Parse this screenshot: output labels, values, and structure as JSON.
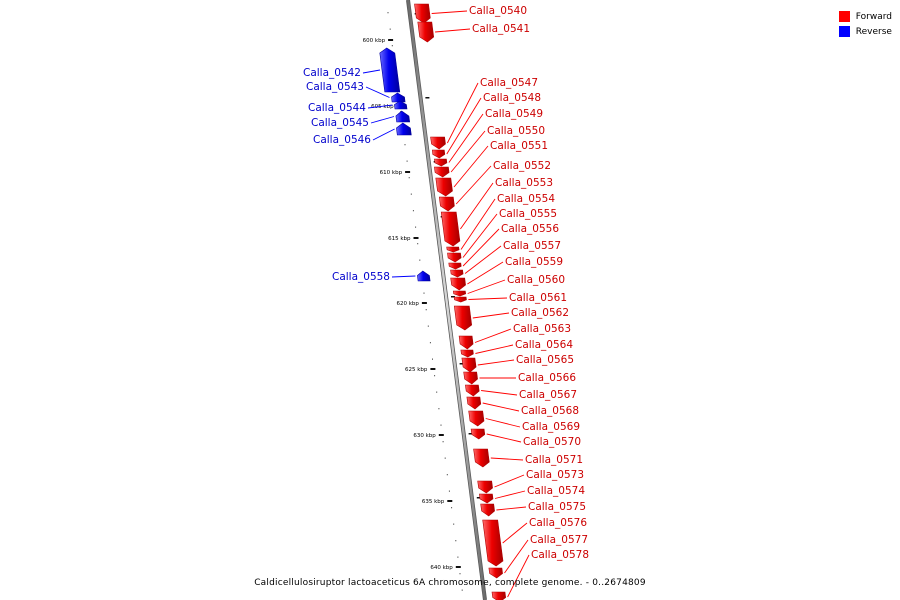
{
  "legend": {
    "forward_label": "Forward",
    "reverse_label": "Reverse",
    "forward_color": "#ff0000",
    "reverse_color": "#0000ff"
  },
  "caption": "Caldicellulosiruptor lactoaceticus 6A chromosome, complete genome. - 0..2674809",
  "ticks": [
    "600 kbp",
    "605 kbp",
    "610 kbp",
    "615 kbp",
    "620 kbp",
    "625 kbp",
    "630 kbp",
    "635 kbp",
    "640 kbp"
  ],
  "genes": [
    {
      "name": "Calla_0540",
      "strand": "forward"
    },
    {
      "name": "Calla_0541",
      "strand": "forward"
    },
    {
      "name": "Calla_0542",
      "strand": "reverse"
    },
    {
      "name": "Calla_0543",
      "strand": "reverse"
    },
    {
      "name": "Calla_0544",
      "strand": "reverse"
    },
    {
      "name": "Calla_0545",
      "strand": "reverse"
    },
    {
      "name": "Calla_0546",
      "strand": "reverse"
    },
    {
      "name": "Calla_0547",
      "strand": "forward"
    },
    {
      "name": "Calla_0548",
      "strand": "forward"
    },
    {
      "name": "Calla_0549",
      "strand": "forward"
    },
    {
      "name": "Calla_0550",
      "strand": "forward"
    },
    {
      "name": "Calla_0551",
      "strand": "forward"
    },
    {
      "name": "Calla_0552",
      "strand": "forward"
    },
    {
      "name": "Calla_0553",
      "strand": "forward"
    },
    {
      "name": "Calla_0554",
      "strand": "forward"
    },
    {
      "name": "Calla_0555",
      "strand": "forward"
    },
    {
      "name": "Calla_0556",
      "strand": "forward"
    },
    {
      "name": "Calla_0557",
      "strand": "forward"
    },
    {
      "name": "Calla_0558",
      "strand": "reverse"
    },
    {
      "name": "Calla_0559",
      "strand": "forward"
    },
    {
      "name": "Calla_0560",
      "strand": "forward"
    },
    {
      "name": "Calla_0561",
      "strand": "forward"
    },
    {
      "name": "Calla_0562",
      "strand": "forward"
    },
    {
      "name": "Calla_0563",
      "strand": "forward"
    },
    {
      "name": "Calla_0564",
      "strand": "forward"
    },
    {
      "name": "Calla_0565",
      "strand": "forward"
    },
    {
      "name": "Calla_0566",
      "strand": "forward"
    },
    {
      "name": "Calla_0567",
      "strand": "forward"
    },
    {
      "name": "Calla_0568",
      "strand": "forward"
    },
    {
      "name": "Calla_0569",
      "strand": "forward"
    },
    {
      "name": "Calla_0570",
      "strand": "forward"
    },
    {
      "name": "Calla_0571",
      "strand": "forward"
    },
    {
      "name": "Calla_0573",
      "strand": "forward"
    },
    {
      "name": "Calla_0574",
      "strand": "forward"
    },
    {
      "name": "Calla_0575",
      "strand": "forward"
    },
    {
      "name": "Calla_0576",
      "strand": "forward"
    },
    {
      "name": "Calla_0577",
      "strand": "forward"
    },
    {
      "name": "Calla_0578",
      "strand": "forward"
    }
  ]
}
